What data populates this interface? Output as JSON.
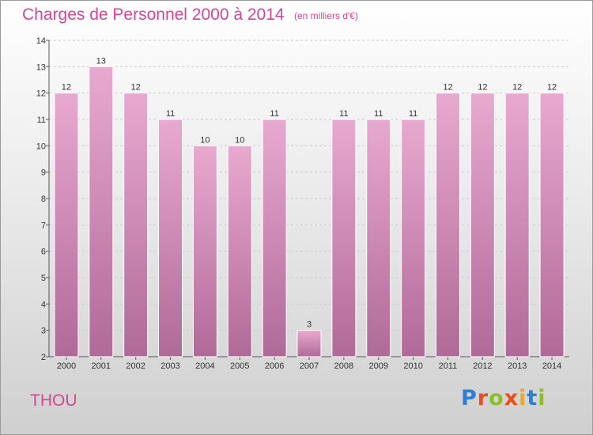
{
  "header": {
    "title": "Charges de Personnel 2000 à 2014",
    "subtitle": "(en milliers d'€)"
  },
  "commune": "THOU",
  "logo": {
    "text": "Proxiti",
    "letter_colors": [
      "#2f7fd0",
      "#e94e1b",
      "#8bbf2a",
      "#e94e1b",
      "#f2a71b",
      "#2f7fd0",
      "#8bbf2a"
    ]
  },
  "colors": {
    "bar_top": "#e8a9d0",
    "bar_bottom": "#b06a97",
    "title": "#d2478f"
  },
  "chart_data": {
    "type": "bar",
    "title": "Charges de Personnel 2000 à 2014",
    "subtitle": "(en milliers d'€)",
    "categories": [
      "2000",
      "2001",
      "2002",
      "2003",
      "2004",
      "2005",
      "2006",
      "2007",
      "2008",
      "2009",
      "2010",
      "2011",
      "2012",
      "2013",
      "2014"
    ],
    "values": [
      12,
      13,
      12,
      11,
      10,
      10,
      11,
      3,
      11,
      11,
      11,
      12,
      12,
      12,
      12
    ],
    "ylim": [
      2,
      14
    ],
    "yticks": [
      2,
      3,
      4,
      5,
      6,
      7,
      8,
      9,
      10,
      11,
      12,
      13,
      14
    ],
    "grid": true,
    "legend": "none"
  }
}
